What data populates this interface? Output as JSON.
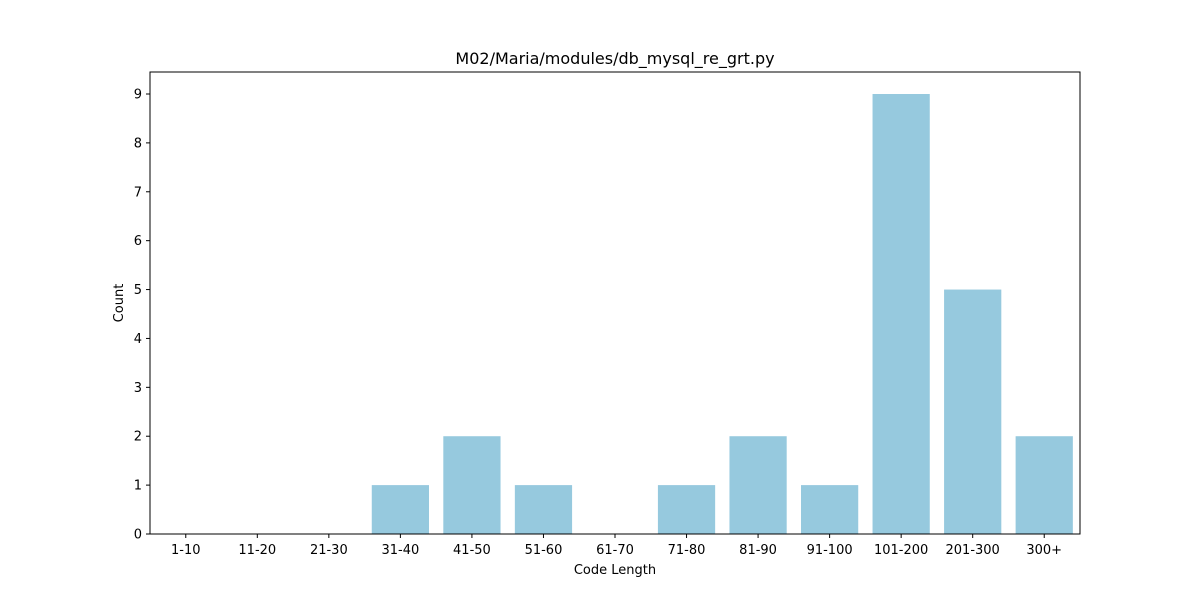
{
  "chart_data": {
    "type": "bar",
    "title": "M02/Maria/modules/db_mysql_re_grt.py",
    "xlabel": "Code Length",
    "ylabel": "Count",
    "categories": [
      "1-10",
      "11-20",
      "21-30",
      "31-40",
      "41-50",
      "51-60",
      "61-70",
      "71-80",
      "81-90",
      "91-100",
      "101-200",
      "201-300",
      "300+"
    ],
    "values": [
      0,
      0,
      0,
      1,
      2,
      1,
      0,
      1,
      2,
      1,
      9,
      5,
      2
    ],
    "ylim": [
      0,
      9.45
    ],
    "yticks": [
      0,
      1,
      2,
      3,
      4,
      5,
      6,
      7,
      8,
      9
    ],
    "bar_color": "#96c9de",
    "grid": false,
    "legend": false
  }
}
